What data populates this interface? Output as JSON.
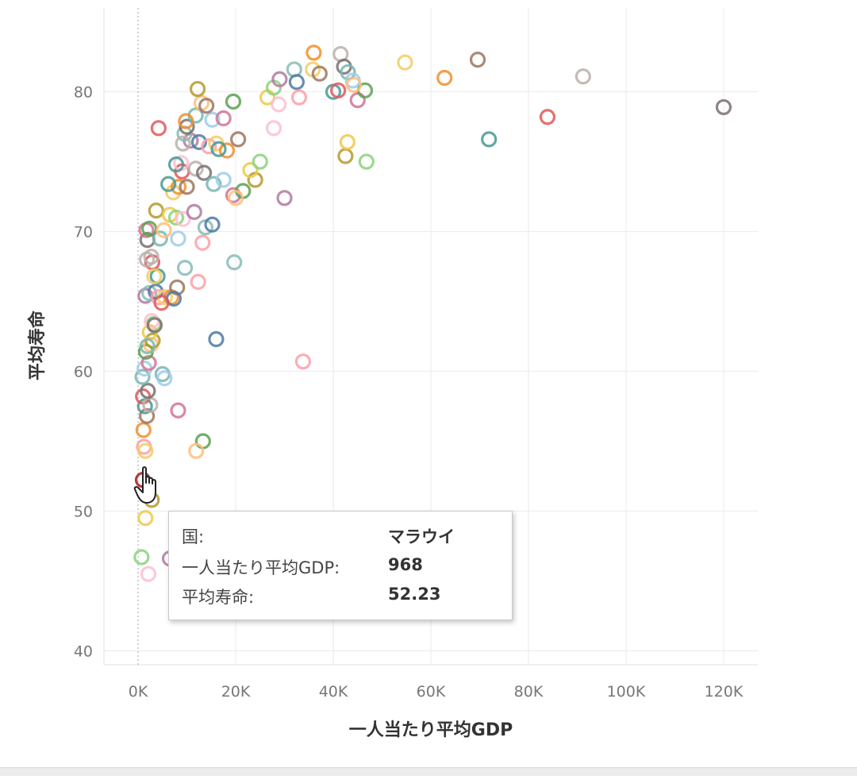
{
  "chart_data": {
    "type": "scatter",
    "xlabel": "一人当たり平均GDP",
    "ylabel": "平均寿命",
    "xlim": [
      -7000,
      127000
    ],
    "ylim": [
      39,
      86
    ],
    "x_ticks": [
      0,
      20000,
      40000,
      60000,
      80000,
      100000,
      120000
    ],
    "x_tick_labels": [
      "0K",
      "20K",
      "40K",
      "60K",
      "80K",
      "100K",
      "120K"
    ],
    "y_ticks": [
      40,
      50,
      60,
      70,
      80
    ],
    "y_tick_labels": [
      "40",
      "50",
      "60",
      "70",
      "80"
    ],
    "grid": true,
    "zero_reference_line": true,
    "marker": "hollow-circle",
    "palette": [
      "#4e79a7",
      "#f28e2b",
      "#e15759",
      "#76b7b2",
      "#59a14f",
      "#edc948",
      "#b07aa1",
      "#ff9da7",
      "#9c755f",
      "#bab0ac",
      "#a0cbe8",
      "#ffbe7d",
      "#8cd17d",
      "#86bcb6",
      "#f1ce63",
      "#499894",
      "#79706e",
      "#d37295",
      "#b6992d",
      "#fabfd2"
    ],
    "points": [
      [
        968,
        52.23
      ],
      [
        1200,
        54.6
      ],
      [
        1500,
        54.3
      ],
      [
        1100,
        55.8
      ],
      [
        1800,
        56.8
      ],
      [
        1400,
        57.5
      ],
      [
        1000,
        58.2
      ],
      [
        2500,
        57.6
      ],
      [
        2000,
        58.6
      ],
      [
        900,
        59.6
      ],
      [
        1300,
        60.2
      ],
      [
        2200,
        60.6
      ],
      [
        1600,
        61.4
      ],
      [
        2600,
        61.9
      ],
      [
        3000,
        62.2
      ],
      [
        2400,
        62.8
      ],
      [
        3200,
        63.4
      ],
      [
        2800,
        63.6
      ],
      [
        1500,
        65.4
      ],
      [
        2300,
        65.6
      ],
      [
        3600,
        65.7
      ],
      [
        4200,
        65.3
      ],
      [
        5500,
        65.3
      ],
      [
        6800,
        65.3
      ],
      [
        8000,
        66.0
      ],
      [
        4000,
        66.8
      ],
      [
        2900,
        67.8
      ],
      [
        1800,
        68.0
      ],
      [
        1900,
        69.4
      ],
      [
        4500,
        69.5
      ],
      [
        8200,
        69.5
      ],
      [
        1700,
        70.1
      ],
      [
        2300,
        70.2
      ],
      [
        5300,
        70.1
      ],
      [
        3700,
        71.5
      ],
      [
        6500,
        71.2
      ],
      [
        7800,
        71.0
      ],
      [
        9200,
        70.9
      ],
      [
        11500,
        71.4
      ],
      [
        13800,
        70.3
      ],
      [
        15200,
        70.5
      ],
      [
        13200,
        69.2
      ],
      [
        7200,
        72.8
      ],
      [
        8300,
        73.2
      ],
      [
        10000,
        73.2
      ],
      [
        6200,
        73.4
      ],
      [
        9000,
        74.3
      ],
      [
        11800,
        74.5
      ],
      [
        13500,
        74.2
      ],
      [
        15500,
        73.4
      ],
      [
        17500,
        73.7
      ],
      [
        19500,
        72.6
      ],
      [
        21500,
        72.9
      ],
      [
        20000,
        72.4
      ],
      [
        24000,
        73.7
      ],
      [
        23000,
        74.4
      ],
      [
        25000,
        75.0
      ],
      [
        8800,
        74.9
      ],
      [
        10800,
        76.5
      ],
      [
        9500,
        77.0
      ],
      [
        12500,
        76.4
      ],
      [
        14500,
        76.1
      ],
      [
        16000,
        76.3
      ],
      [
        18200,
        75.8
      ],
      [
        20500,
        76.6
      ],
      [
        16500,
        75.9
      ],
      [
        4200,
        77.4
      ],
      [
        9200,
        76.3
      ],
      [
        10000,
        77.5
      ],
      [
        11800,
        78.3
      ],
      [
        15200,
        78.0
      ],
      [
        17500,
        78.1
      ],
      [
        19500,
        79.3
      ],
      [
        13000,
        79.2
      ],
      [
        12200,
        80.2
      ],
      [
        26500,
        79.6
      ],
      [
        27800,
        80.3
      ],
      [
        28800,
        79.1
      ],
      [
        29000,
        80.9
      ],
      [
        32000,
        81.6
      ],
      [
        32500,
        80.7
      ],
      [
        33000,
        79.6
      ],
      [
        35800,
        81.6
      ],
      [
        36000,
        82.8
      ],
      [
        37200,
        81.3
      ],
      [
        40000,
        80.0
      ],
      [
        41000,
        80.1
      ],
      [
        41500,
        82.7
      ],
      [
        42200,
        81.8
      ],
      [
        43000,
        81.4
      ],
      [
        44000,
        80.8
      ],
      [
        45000,
        79.4
      ],
      [
        46500,
        80.1
      ],
      [
        44200,
        80.5
      ],
      [
        42500,
        75.4
      ],
      [
        42900,
        76.4
      ],
      [
        46800,
        75.0
      ],
      [
        27800,
        77.4
      ],
      [
        30000,
        72.4
      ],
      [
        19700,
        67.8
      ],
      [
        16000,
        62.3
      ],
      [
        33800,
        60.7
      ],
      [
        54700,
        82.1
      ],
      [
        62800,
        81.0
      ],
      [
        69600,
        82.3
      ],
      [
        71900,
        76.6
      ],
      [
        83900,
        78.2
      ],
      [
        91200,
        81.1
      ],
      [
        120000,
        78.9
      ],
      [
        5000,
        59.8
      ],
      [
        5400,
        59.5
      ],
      [
        8200,
        57.2
      ],
      [
        13300,
        55.0
      ],
      [
        11900,
        54.3
      ],
      [
        2800,
        50.8
      ],
      [
        1500,
        49.5
      ],
      [
        700,
        46.7
      ],
      [
        2100,
        45.5
      ],
      [
        6500,
        46.6
      ],
      [
        9600,
        67.4
      ],
      [
        7300,
        65.2
      ],
      [
        12300,
        66.4
      ],
      [
        3300,
        66.8
      ],
      [
        9800,
        77.9
      ],
      [
        14000,
        79.0
      ],
      [
        7800,
        74.8
      ],
      [
        4800,
        64.9
      ],
      [
        2700,
        68.2
      ],
      [
        3400,
        63.3
      ],
      [
        1900,
        61.8
      ]
    ]
  },
  "tooltip": {
    "rows": [
      {
        "label": "国:",
        "value": "マラウイ"
      },
      {
        "label": "一人当たり平均GDP:",
        "value": "968"
      },
      {
        "label": "平均寿命:",
        "value": "52.23"
      }
    ]
  }
}
